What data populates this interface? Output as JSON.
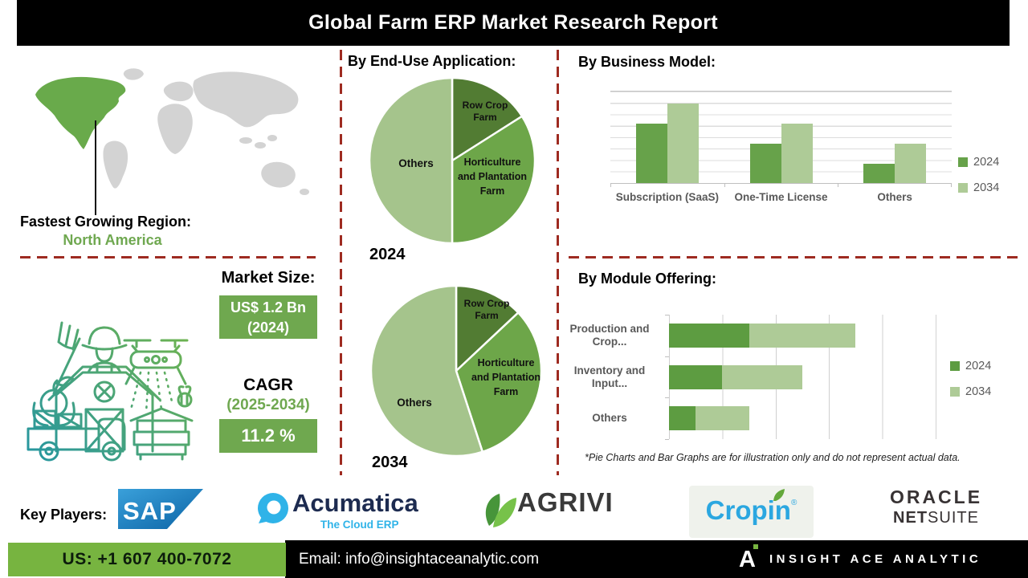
{
  "title": "Global Farm ERP Market Research Report",
  "region": {
    "label": "Fastest Growing Region:",
    "value": "North America"
  },
  "market_size": {
    "label": "Market Size:",
    "value": "US$ 1.2 Bn",
    "year": "(2024)"
  },
  "cagr": {
    "label": "CAGR",
    "period": "(2025-2034)",
    "value": "11.2 %"
  },
  "chart_data": [
    {
      "type": "pie",
      "section_title": "By End-Use Application:",
      "year_label": "2024",
      "slices": [
        {
          "label": "Row Crop Farm",
          "value": 16,
          "color": "#527c33"
        },
        {
          "label": "Horticulture and Plantation Farm",
          "value": 34,
          "color": "#6da649"
        },
        {
          "label": "Others",
          "value": 50,
          "color": "#a5c48c"
        }
      ]
    },
    {
      "type": "pie",
      "year_label": "2034",
      "slices": [
        {
          "label": "Row Crop Farm",
          "value": 13,
          "color": "#527c33"
        },
        {
          "label": "Horticulture and Plantation Farm",
          "value": 32,
          "color": "#6da649"
        },
        {
          "label": "Others",
          "value": 55,
          "color": "#a5c48c"
        }
      ]
    },
    {
      "type": "bar",
      "title": "By Business Model:",
      "categories": [
        "Subscription (SaaS)",
        "One-Time License",
        "Others"
      ],
      "series": [
        {
          "name": "2024",
          "color": "#67a24a",
          "values": [
            6.5,
            4.3,
            2.1
          ]
        },
        {
          "name": "2034",
          "color": "#aecb97",
          "values": [
            8.7,
            6.5,
            4.3
          ]
        }
      ],
      "ylim": [
        0,
        10
      ],
      "grid": "horizontal",
      "legend_position": "right"
    },
    {
      "type": "bar-horizontal-stacked",
      "title": "By Module Offering:",
      "categories": [
        "Production and Crop...",
        "Inventory and Input...",
        "Others"
      ],
      "series": [
        {
          "name": "2024",
          "color": "#5d9c41",
          "values": [
            1.5,
            1.0,
            0.5
          ]
        },
        {
          "name": "2034",
          "color": "#aecb97",
          "values": [
            2.0,
            1.5,
            1.0
          ]
        }
      ],
      "xlim": [
        0,
        5
      ],
      "grid": "vertical",
      "legend_position": "right"
    }
  ],
  "note": "*Pie Charts and Bar Graphs are for illustration only and do not represent actual data.",
  "key_players": {
    "label": "Key Players:",
    "sap": "SAP",
    "acumatica": "Acumatica",
    "acumatica_tagline": "The Cloud ERP",
    "agrivi": "AGRIVI",
    "cropin": "Cropin",
    "oracle_line1": "ORACLE",
    "oracle_net": "NET",
    "oracle_suite": "SUITE"
  },
  "footer": {
    "phone": "US: +1 607 400-7072",
    "email": "Email: info@insightaceanalytic.com",
    "brand": "INSIGHT ACE ANALYTIC",
    "logo_letter": "A"
  },
  "colors": {
    "accent_green": "#6fa850",
    "footer_green": "#77b440",
    "dashed_red": "#9e2b21",
    "map_highlight": "#69aa4b",
    "map_base": "#d3d3d3"
  }
}
